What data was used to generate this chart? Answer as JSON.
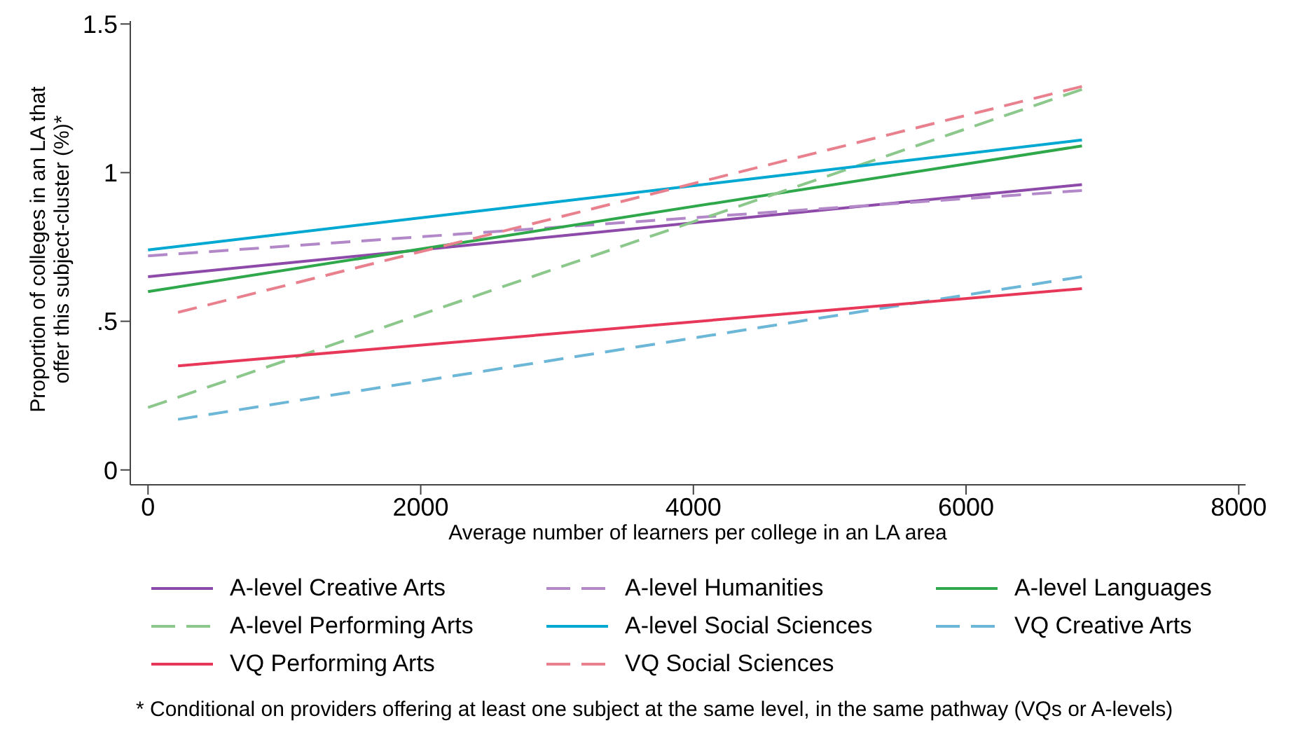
{
  "chart_data": {
    "type": "line",
    "xlabel": "Average number of learners per college in an LA area",
    "ylabel": "Proportion of colleges in an LA that offer this subject-cluster (%)*",
    "annotations": [
      "* Conditional on providers offering at least one subject at the same level, in the same pathway (VQs or A-levels)"
    ],
    "xlim": [
      -130,
      8050
    ],
    "xticks": [
      0,
      2000,
      4000,
      6000,
      8000
    ],
    "ylim": [
      -0.05,
      1.51
    ],
    "yticks": [
      0,
      {
        "value": 0.5,
        "label": ".5"
      },
      1,
      1.5
    ],
    "legend": "bottom",
    "series": [
      {
        "name": "A-level Creative Arts",
        "color": "#8e4aa8",
        "line_style": "solid",
        "x": [
          0,
          6850
        ],
        "values": [
          0.65,
          0.96
        ]
      },
      {
        "name": "A-level Humanities",
        "color": "#b388c9",
        "line_style": "dashed",
        "x": [
          0,
          6850
        ],
        "values": [
          0.72,
          0.94
        ]
      },
      {
        "name": "A-level Languages",
        "color": "#2ea84a",
        "line_style": "solid",
        "x": [
          0,
          6850
        ],
        "values": [
          0.6,
          1.09
        ]
      },
      {
        "name": "A-level Performing Arts",
        "color": "#8cc78c",
        "line_style": "dashed",
        "x": [
          0,
          6850
        ],
        "values": [
          0.21,
          1.28
        ]
      },
      {
        "name": "A-level Social Sciences",
        "color": "#00a8d2",
        "line_style": "solid",
        "x": [
          0,
          6850
        ],
        "values": [
          0.74,
          1.11
        ]
      },
      {
        "name": "VQ Creative Arts",
        "color": "#6cb7d8",
        "line_style": "dashed",
        "x": [
          220,
          6850
        ],
        "values": [
          0.17,
          0.65
        ]
      },
      {
        "name": "VQ Performing Arts",
        "color": "#e8385a",
        "line_style": "solid",
        "x": [
          220,
          6850
        ],
        "values": [
          0.35,
          0.61
        ]
      },
      {
        "name": "VQ Social Sciences",
        "color": "#e8808e",
        "line_style": "dashed",
        "x": [
          220,
          6850
        ],
        "values": [
          0.53,
          1.29
        ]
      }
    ]
  }
}
